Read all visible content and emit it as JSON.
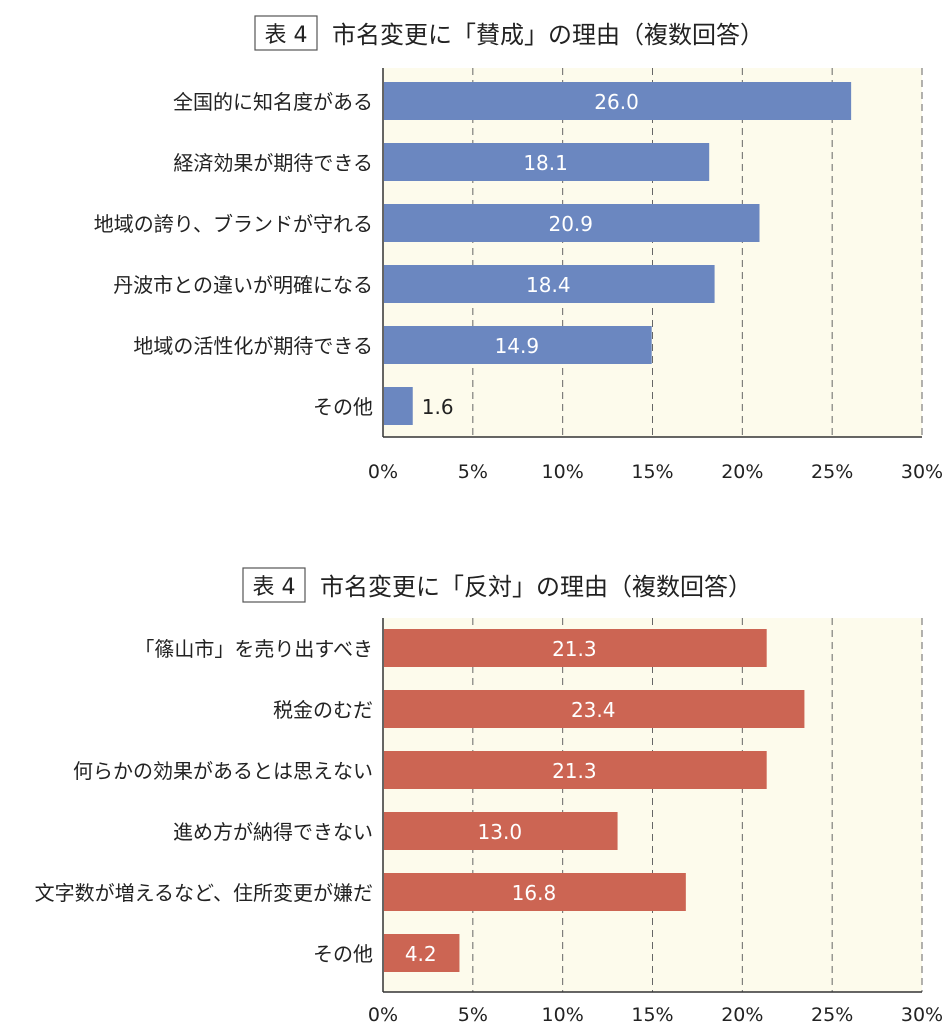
{
  "chart_data": [
    {
      "type": "bar",
      "orientation": "horizontal",
      "table_label": "表 4",
      "title": "市名変更に「賛成」の理由（複数回答）",
      "categories": [
        "全国的に知名度がある",
        "経済効果が期待できる",
        "地域の誇り、ブランドが守れる",
        "丹波市との違いが明確になる",
        "地域の活性化が期待できる",
        "その他"
      ],
      "values": [
        26.0,
        18.1,
        20.9,
        18.4,
        14.9,
        1.6
      ],
      "value_labels": [
        "26.0",
        "18.1",
        "20.9",
        "18.4",
        "14.9",
        "1.6"
      ],
      "xlim": [
        0,
        30
      ],
      "xticks": [
        "0%",
        "5%",
        "10%",
        "15%",
        "20%",
        "25%",
        "30%"
      ],
      "grid": "vertical dashed",
      "bar_color": "#6b87c0"
    },
    {
      "type": "bar",
      "orientation": "horizontal",
      "table_label": "表 4",
      "title": "市名変更に「反対」の理由（複数回答）",
      "categories": [
        "「篠山市」を売り出すべき",
        "税金のむだ",
        "何らかの効果があるとは思えない",
        "進め方が納得できない",
        "文字数が増えるなど、住所変更が嫌だ",
        "その他"
      ],
      "values": [
        21.3,
        23.4,
        21.3,
        13.0,
        16.8,
        4.2
      ],
      "value_labels": [
        "21.3",
        "23.4",
        "21.3",
        "13.0",
        "16.8",
        "4.2"
      ],
      "xlim": [
        0,
        30
      ],
      "xticks": [
        "0%",
        "5%",
        "10%",
        "15%",
        "20%",
        "25%",
        "30%"
      ],
      "grid": "vertical dashed",
      "bar_color": "#cc6553"
    }
  ]
}
